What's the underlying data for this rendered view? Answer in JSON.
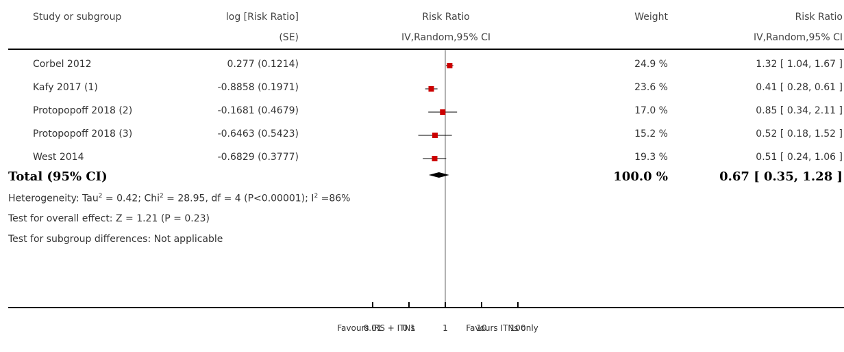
{
  "header": {
    "study_label": "Study or subgroup",
    "log_label_1": "log [Risk Ratio]",
    "log_label_2": "(SE)",
    "rr_label_1": "Risk Ratio",
    "rr_label_2": "IV,Random,95% CI",
    "weight_label": "Weight",
    "rr2_label_1": "Risk Ratio",
    "rr2_label_2": "IV,Random,95% CI"
  },
  "total": {
    "label": "Total (95% CI)",
    "weight": "100.0 %",
    "ci": "0.67 [ 0.35, 1.28 ]"
  },
  "footnotes": {
    "heterogeneity_prefix": "Heterogeneity: Tau",
    "heterogeneity_tau_sup": "2",
    "heterogeneity_mid": " = 0.42; Chi",
    "heterogeneity_chi_sup": "2",
    "heterogeneity_mid2": " = 28.95, df = 4 (P<0.00001); I",
    "heterogeneity_i_sup": "2",
    "heterogeneity_end": " =86%",
    "overall": "Test for overall effect: Z = 1.21 (P = 0.23)",
    "subgroup": "Test for subgroup differences: Not applicable"
  },
  "axis": {
    "favours_left": "Favours IRS + ITNs",
    "favours_right": "Favours ITNs only"
  },
  "colors": {
    "marker": "#cc0000",
    "line": "#000000",
    "null_line": "#666666"
  },
  "chart_data": {
    "type": "forest",
    "scale": "log",
    "xlim": [
      0.01,
      100
    ],
    "ticks": [
      {
        "value": 0.01,
        "label": "0.01"
      },
      {
        "value": 0.1,
        "label": "0.1"
      },
      {
        "value": 1,
        "label": "1"
      },
      {
        "value": 10,
        "label": "10"
      },
      {
        "value": 100,
        "label": "100"
      }
    ],
    "studies": [
      {
        "name": "Corbel 2012",
        "log_rr_se": "0.277 (0.1214)",
        "weight": "24.9 %",
        "ci_text": "1.32 [ 1.04, 1.67 ]",
        "rr": 1.32,
        "lo": 1.04,
        "hi": 1.67
      },
      {
        "name": "Kafy 2017 (1)",
        "log_rr_se": "-0.8858 (0.1971)",
        "weight": "23.6 %",
        "ci_text": "0.41 [ 0.28, 0.61 ]",
        "rr": 0.41,
        "lo": 0.28,
        "hi": 0.61
      },
      {
        "name": "Protopopoff 2018 (2)",
        "log_rr_se": "-0.1681 (0.4679)",
        "weight": "17.0 %",
        "ci_text": "0.85 [ 0.34, 2.11 ]",
        "rr": 0.85,
        "lo": 0.34,
        "hi": 2.11
      },
      {
        "name": "Protopopoff 2018 (3)",
        "log_rr_se": "-0.6463 (0.5423)",
        "weight": "15.2 %",
        "ci_text": "0.52 [ 0.18, 1.52 ]",
        "rr": 0.52,
        "lo": 0.18,
        "hi": 1.52
      },
      {
        "name": "West 2014",
        "log_rr_se": "-0.6829 (0.3777)",
        "weight": "19.3 %",
        "ci_text": "0.51 [ 0.24, 1.06 ]",
        "rr": 0.51,
        "lo": 0.24,
        "hi": 1.06
      }
    ],
    "pooled": {
      "rr": 0.67,
      "lo": 0.35,
      "hi": 1.28
    }
  }
}
